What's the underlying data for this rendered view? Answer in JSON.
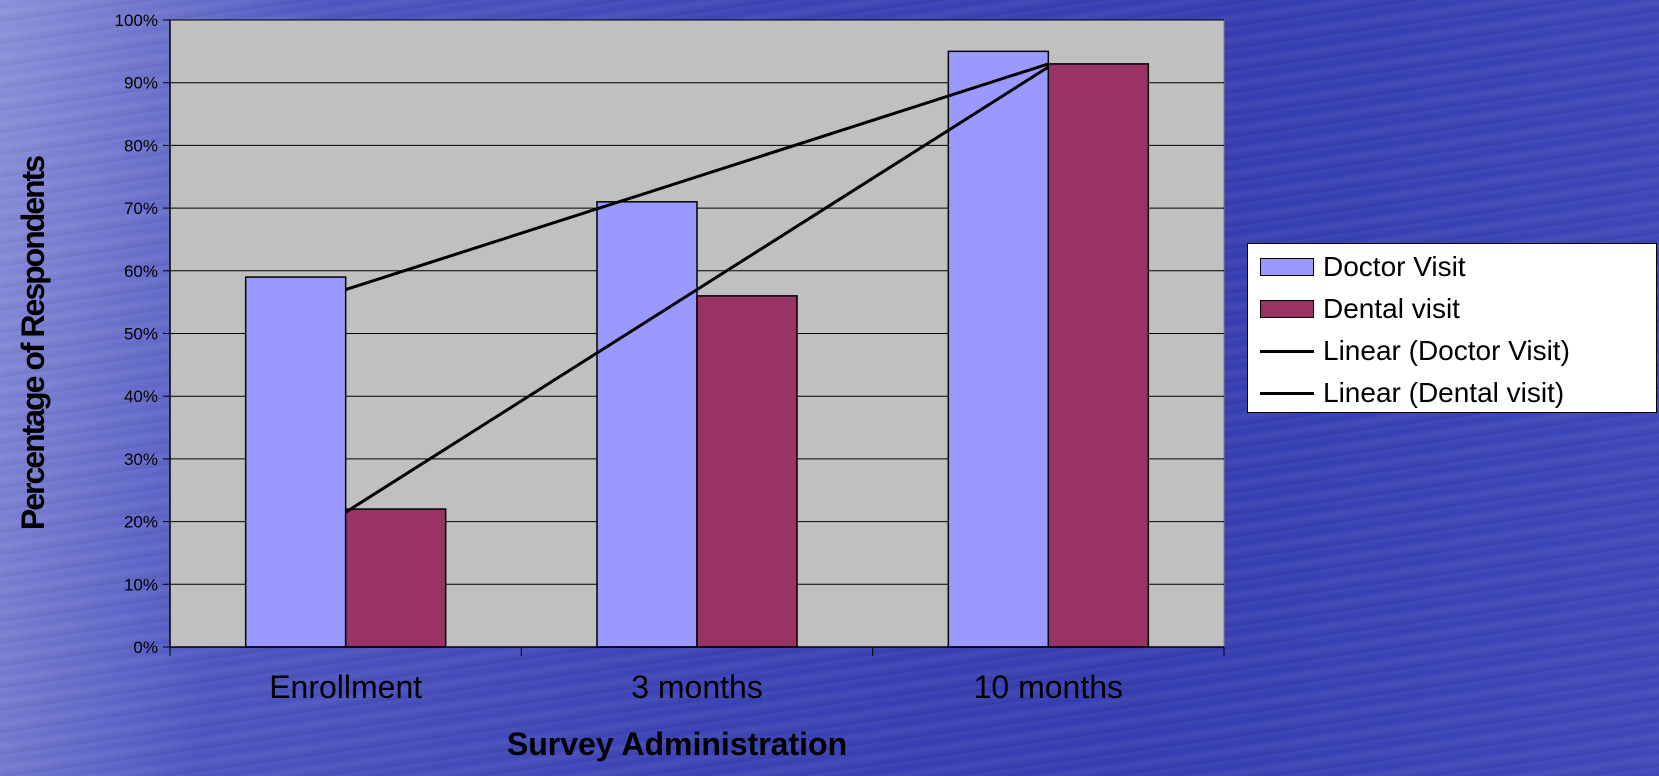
{
  "chart_data": {
    "type": "bar",
    "categories": [
      "Enrollment",
      "3 months",
      "10 months"
    ],
    "series": [
      {
        "name": "Doctor Visit",
        "values": [
          59,
          71,
          95
        ],
        "color": "#9999ff"
      },
      {
        "name": "Dental visit",
        "values": [
          22,
          56,
          93
        ],
        "color": "#993366"
      }
    ],
    "trendlines": [
      {
        "name": "Linear (Doctor Visit)",
        "type": "linear",
        "color": "#000000"
      },
      {
        "name": "Linear (Dental visit)",
        "type": "linear",
        "color": "#000000"
      }
    ],
    "xlabel": "Survey Administration",
    "ylabel": "Percentage of Respondents",
    "ylim": [
      0,
      100
    ],
    "yticks": [
      "0%",
      "10%",
      "20%",
      "30%",
      "40%",
      "50%",
      "60%",
      "70%",
      "80%",
      "90%",
      "100%"
    ],
    "grid": true,
    "plot_background": "#c0c0c0",
    "legend_position": "right"
  }
}
